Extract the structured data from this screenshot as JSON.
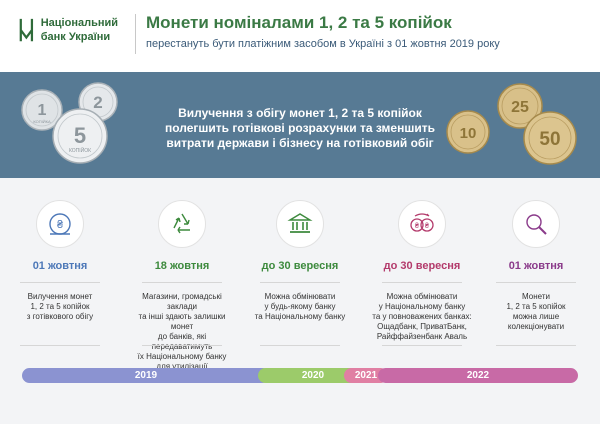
{
  "header": {
    "logo_line1": "Національний",
    "logo_line2": "банк України",
    "title": "Монети номіналами 1, 2 та 5 копійок",
    "subtitle": "перестануть бути платіжним засобом в Україні з 01 жовтня 2019 року"
  },
  "band": {
    "line1": "Вилучення з обігу монет 1, 2 та 5 копійок",
    "line2": "полегшить готівкові розрахунки та зменшить",
    "line3": "витрати держави і бізнесу на готівковий обіг",
    "coins_left": [
      {
        "value": "1",
        "sub": "КОПІЙКА"
      },
      {
        "value": "2",
        "sub": ""
      },
      {
        "value": "5",
        "sub": "КОПІЙОК"
      }
    ],
    "coins_right": [
      {
        "value": "10",
        "sub": ""
      },
      {
        "value": "25",
        "sub": ""
      },
      {
        "value": "50",
        "sub": ""
      }
    ]
  },
  "steps": [
    {
      "date": "01 жовтня",
      "desc": [
        "Вилучення монет",
        "1, 2 та 5 копійок",
        "з готівкового обігу"
      ],
      "color": "#4d78b8",
      "icon": "coin-hand-icon"
    },
    {
      "date": "18 жовтня",
      "desc": [
        "Магазини, громадські заклади",
        "та інші здають залишки монет",
        "до банків, які передаватимуть",
        "їх Національному банку",
        "для утилізації"
      ],
      "color": "#3d8a3d",
      "icon": "recycle-icon"
    },
    {
      "date": "до 30 вересня",
      "desc": [
        "Можна обмінювати",
        "у будь-якому банку",
        "та Національному банку"
      ],
      "color": "#3d8a3d",
      "icon": "bank-icon"
    },
    {
      "date": "до 30 вересня",
      "desc": [
        "Можна обмінювати",
        "у Національному банку",
        "та у повноважених банках:",
        "Ощадбанк, ПриватБанк,",
        "Райффайзенбанк Аваль"
      ],
      "color": "#b33a6b",
      "icon": "exchange-icon"
    },
    {
      "date": "01 жовтня",
      "desc": [
        "Монети",
        "1, 2 та 5 копійок",
        "можна лише",
        "колекціонувати"
      ],
      "color": "#8a3a8a",
      "icon": "magnifier-coin-icon"
    }
  ],
  "timeline": [
    {
      "label": "2019",
      "color": "#8b93d1"
    },
    {
      "label": "2020",
      "color": "#9ccb6a"
    },
    {
      "label": "2021",
      "color": "#e07fa3"
    },
    {
      "label": "2022",
      "color": "#c86aa6"
    }
  ]
}
